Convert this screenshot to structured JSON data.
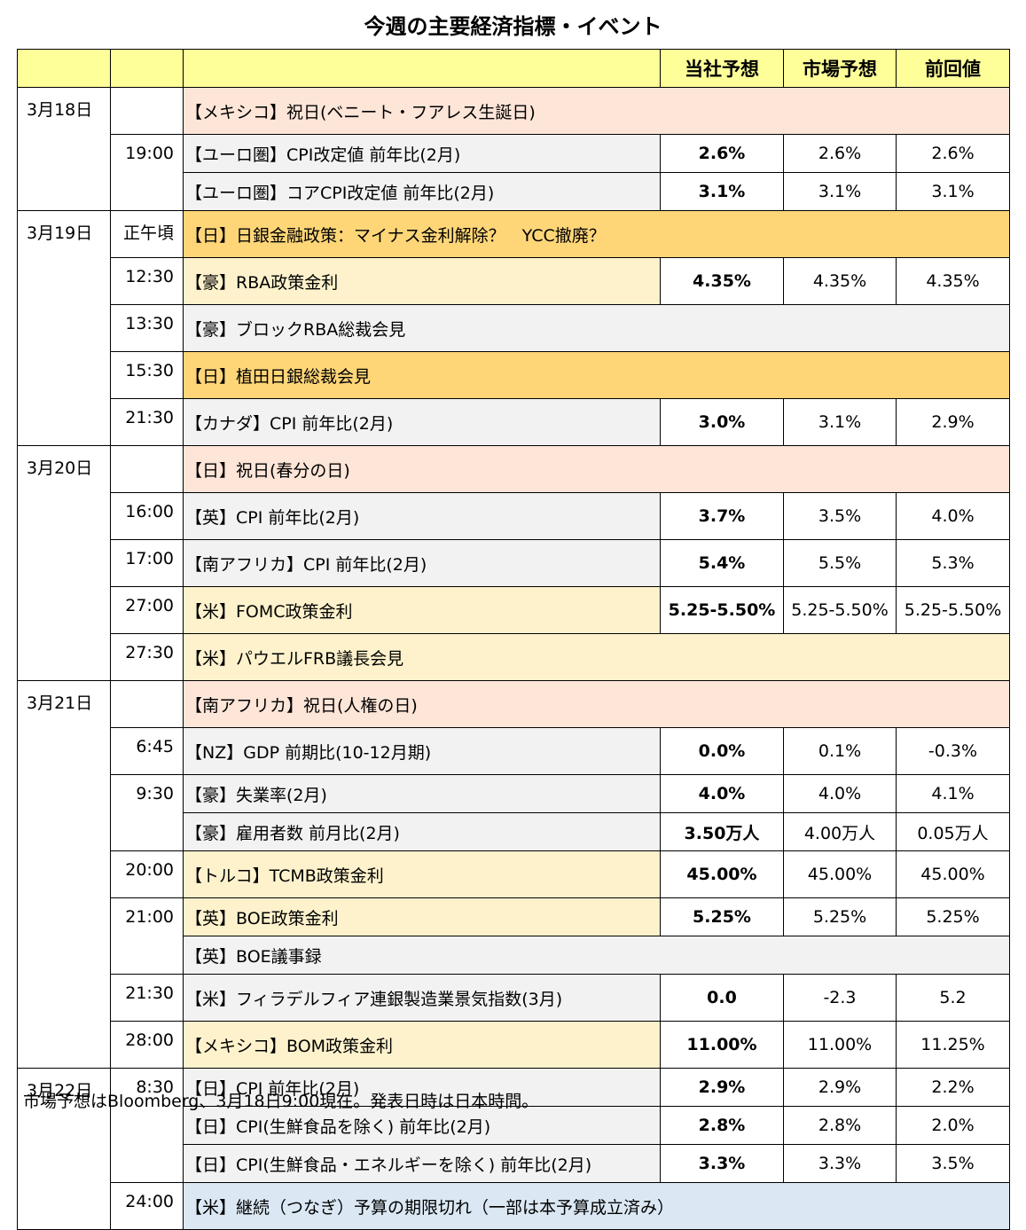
{
  "title": "今週の主要経済指標・イベント",
  "headers": {
    "forecast": "当社予想",
    "market": "市場予想",
    "previous": "前回値"
  },
  "rows": [
    {
      "date": "3月18日",
      "time": "",
      "event": "【メキシコ】祝日(ベニート・フアレス生誕日)",
      "forecast": "",
      "market": "",
      "previous": "",
      "bg": "pink",
      "span": true
    },
    {
      "date": "",
      "time": "19:00",
      "event": "【ユーロ圏】CPI改定値 前年比(2月)",
      "forecast": "2.6%",
      "market": "2.6%",
      "previous": "2.6%",
      "bg": "grey"
    },
    {
      "date": "",
      "time": "",
      "event": "【ユーロ圏】コアCPI改定値 前年比(2月)",
      "forecast": "3.1%",
      "market": "3.1%",
      "previous": "3.1%",
      "bg": "grey"
    },
    {
      "date": "3月19日",
      "time": "正午頃",
      "event": "【日】日銀金融政策：マイナス金利解除？　YCC撤廃？",
      "forecast": "",
      "market": "",
      "previous": "",
      "bg": "gold",
      "span": true
    },
    {
      "date": "",
      "time": "12:30",
      "event": "【豪】RBA政策金利",
      "forecast": "4.35%",
      "market": "4.35%",
      "previous": "4.35%",
      "bg": "cream"
    },
    {
      "date": "",
      "time": "13:30",
      "event": "【豪】ブロックRBA総裁会見",
      "forecast": "",
      "market": "",
      "previous": "",
      "bg": "grey",
      "span": true
    },
    {
      "date": "",
      "time": "15:30",
      "event": "【日】植田日銀総裁会見",
      "forecast": "",
      "market": "",
      "previous": "",
      "bg": "gold",
      "span": true
    },
    {
      "date": "",
      "time": "21:30",
      "event": "【カナダ】CPI 前年比(2月)",
      "forecast": "3.0%",
      "market": "3.1%",
      "previous": "2.9%",
      "bg": "grey"
    },
    {
      "date": "3月20日",
      "time": "",
      "event": "【日】祝日(春分の日)",
      "forecast": "",
      "market": "",
      "previous": "",
      "bg": "pink",
      "span": true
    },
    {
      "date": "",
      "time": "16:00",
      "event": "【英】CPI 前年比(2月)",
      "forecast": "3.7%",
      "market": "3.5%",
      "previous": "4.0%",
      "bg": "grey"
    },
    {
      "date": "",
      "time": "17:00",
      "event": "【南アフリカ】CPI 前年比(2月)",
      "forecast": "5.4%",
      "market": "5.5%",
      "previous": "5.3%",
      "bg": "grey"
    },
    {
      "date": "",
      "time": "27:00",
      "event": "【米】FOMC政策金利",
      "forecast": "5.25-5.50%",
      "market": "5.25-5.50%",
      "previous": "5.25-5.50%",
      "bg": "cream"
    },
    {
      "date": "",
      "time": "27:30",
      "event": "【米】パウエルFRB議長会見",
      "forecast": "",
      "market": "",
      "previous": "",
      "bg": "cream",
      "span": true
    },
    {
      "date": "3月21日",
      "time": "",
      "event": "【南アフリカ】祝日(人権の日)",
      "forecast": "",
      "market": "",
      "previous": "",
      "bg": "pink",
      "span": true
    },
    {
      "date": "",
      "time": "6:45",
      "event": "【NZ】GDP 前期比(10-12月期)",
      "forecast": "0.0%",
      "market": "0.1%",
      "previous": "-0.3%",
      "bg": "grey"
    },
    {
      "date": "",
      "time": "9:30",
      "event": "【豪】失業率(2月)",
      "forecast": "4.0%",
      "market": "4.0%",
      "previous": "4.1%",
      "bg": "grey"
    },
    {
      "date": "",
      "time": "",
      "event": "【豪】雇用者数 前月比(2月)",
      "forecast": "3.50万人",
      "market": "4.00万人",
      "previous": "0.05万人",
      "bg": "grey"
    },
    {
      "date": "",
      "time": "20:00",
      "event": "【トルコ】TCMB政策金利",
      "forecast": "45.00%",
      "market": "45.00%",
      "previous": "45.00%",
      "bg": "cream"
    },
    {
      "date": "",
      "time": "21:00",
      "event": "【英】BOE政策金利",
      "forecast": "5.25%",
      "market": "5.25%",
      "previous": "5.25%",
      "bg": "cream"
    },
    {
      "date": "",
      "time": "",
      "event": "【英】BOE議事録",
      "forecast": "",
      "market": "",
      "previous": "",
      "bg": "grey",
      "span": true
    },
    {
      "date": "",
      "time": "21:30",
      "event": "【米】フィラデルフィア連銀製造業景気指数(3月)",
      "forecast": "0.0",
      "market": "-2.3",
      "previous": "5.2",
      "bg": "grey"
    },
    {
      "date": "",
      "time": "28:00",
      "event": "【メキシコ】BOM政策金利",
      "forecast": "11.00%",
      "market": "11.00%",
      "previous": "11.25%",
      "bg": "cream"
    },
    {
      "date": "3月22日",
      "time": "8:30",
      "event": "【日】CPI 前年比(2月)",
      "forecast": "2.9%",
      "market": "2.9%",
      "previous": "2.2%",
      "bg": "grey"
    },
    {
      "date": "",
      "time": "",
      "event": "【日】CPI(生鮮食品を除く) 前年比(2月)",
      "forecast": "2.8%",
      "market": "2.8%",
      "previous": "2.0%",
      "bg": "grey"
    },
    {
      "date": "",
      "time": "",
      "event": "【日】CPI(生鮮食品・エネルギーを除く) 前年比(2月)",
      "forecast": "3.3%",
      "market": "3.3%",
      "previous": "3.5%",
      "bg": "grey"
    },
    {
      "date": "",
      "time": "24:00",
      "event": "【米】継続（つなぎ）予算の期限切れ（一部は本予算成立済み）",
      "forecast": "",
      "market": "",
      "previous": "",
      "bg": "blue",
      "span": true
    }
  ],
  "footnote": "市場予想はBloomberg、3月18日9:00現在。発表日時は日本時間。"
}
